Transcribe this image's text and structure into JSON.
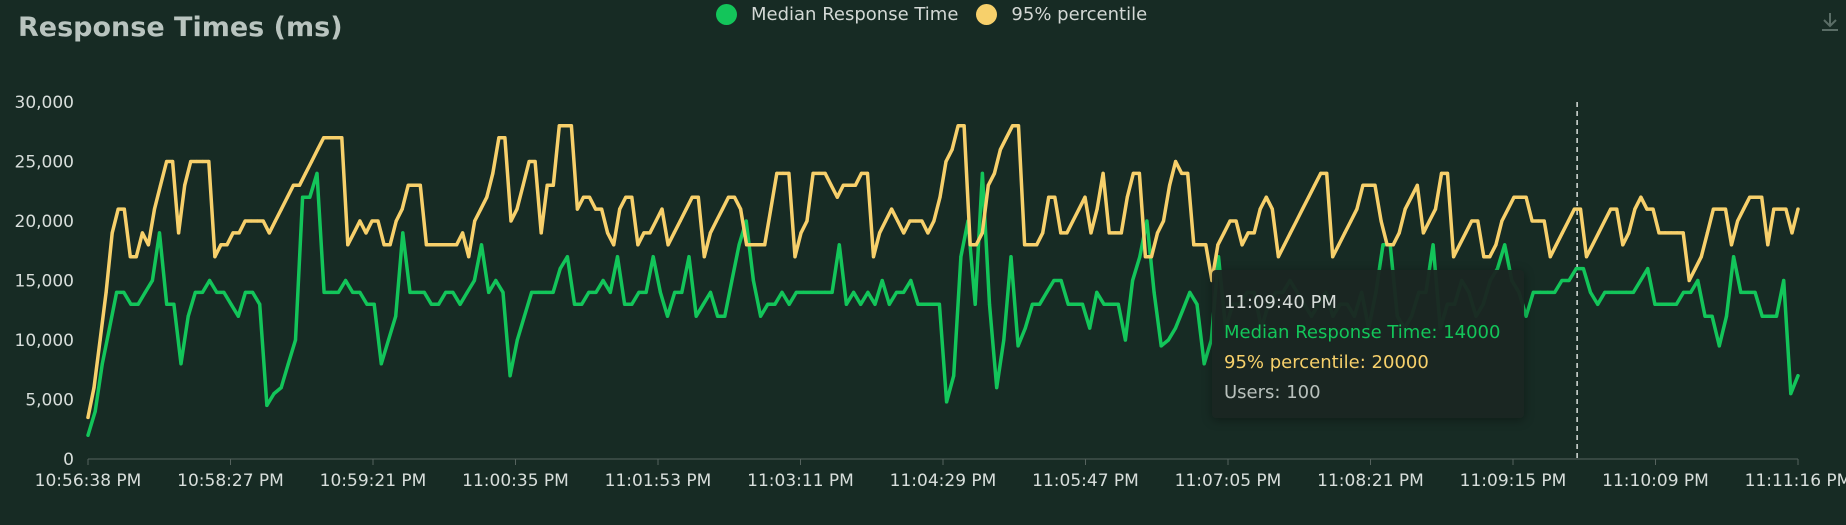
{
  "chart_data": {
    "type": "line",
    "title": "Response Times (ms)",
    "xlabel": "",
    "ylabel": "",
    "ylim": [
      0,
      30000
    ],
    "y_ticks": [
      "0",
      "5,000",
      "10,000",
      "15,000",
      "20,000",
      "25,000",
      "30,000"
    ],
    "x_tick_labels": [
      "10:56:38 PM",
      "10:58:27 PM",
      "10:59:21 PM",
      "11:00:35 PM",
      "11:01:53 PM",
      "11:03:11 PM",
      "11:04:29 PM",
      "11:05:47 PM",
      "11:07:05 PM",
      "11:08:21 PM",
      "11:09:15 PM",
      "11:10:09 PM",
      "11:11:16 PM"
    ],
    "grid": false,
    "legend_position": "top-center",
    "series": [
      {
        "name": "Median Response Time",
        "color": "#13c55a",
        "values": [
          2000,
          4000,
          8000,
          11000,
          14000,
          14000,
          13000,
          13000,
          14000,
          15000,
          19000,
          13000,
          13000,
          8000,
          12000,
          14000,
          14000,
          15000,
          14000,
          14000,
          13000,
          12000,
          14000,
          14000,
          13000,
          4500,
          5500,
          6000,
          8000,
          10000,
          22000,
          22000,
          24000,
          14000,
          14000,
          14000,
          15000,
          14000,
          14000,
          13000,
          13000,
          8000,
          10000,
          12000,
          19000,
          14000,
          14000,
          14000,
          13000,
          13000,
          14000,
          14000,
          13000,
          14000,
          15000,
          18000,
          14000,
          15000,
          14000,
          7000,
          10000,
          12000,
          14000,
          14000,
          14000,
          14000,
          16000,
          17000,
          13000,
          13000,
          14000,
          14000,
          15000,
          14000,
          17000,
          13000,
          13000,
          14000,
          14000,
          17000,
          14000,
          12000,
          14000,
          14000,
          17000,
          12000,
          13000,
          14000,
          12000,
          12000,
          15000,
          18000,
          20000,
          15000,
          12000,
          13000,
          13000,
          14000,
          13000,
          14000,
          14000,
          14000,
          14000,
          14000,
          14000,
          18000,
          13000,
          14000,
          13000,
          14000,
          13000,
          15000,
          13000,
          14000,
          14000,
          15000,
          13000,
          13000,
          13000,
          13000,
          4800,
          7000,
          17000,
          20000,
          13000,
          24000,
          13000,
          6000,
          10000,
          17000,
          9500,
          11000,
          13000,
          13000,
          14000,
          15000,
          15000,
          13000,
          13000,
          13000,
          11000,
          14000,
          13000,
          13000,
          13000,
          10000,
          15000,
          17000,
          20000,
          14000,
          9500,
          10000,
          11000,
          12500,
          14000,
          13000,
          8000,
          10000,
          17000,
          11000,
          13000,
          13000,
          14000,
          14000,
          11000,
          13000,
          14000,
          14000,
          15000,
          14000,
          13000,
          12000,
          13000,
          14000,
          12000,
          13000,
          13000,
          12000,
          14000,
          11000,
          14000,
          18000,
          18000,
          12000,
          11000,
          12000,
          14000,
          14000,
          18000,
          11000,
          13000,
          13000,
          15000,
          14000,
          12000,
          13000,
          15000,
          16000,
          18000,
          15000,
          14000,
          12000,
          14000,
          14000,
          14000,
          14000,
          15000,
          15000,
          16000,
          16000,
          14000,
          13000,
          14000,
          14000,
          14000,
          14000,
          14000,
          15000,
          16000,
          13000,
          13000,
          13000,
          13000,
          14000,
          14000,
          15000,
          12000,
          12000,
          9500,
          12000,
          17000,
          14000,
          14000,
          14000,
          12000,
          12000,
          12000,
          15000,
          5500,
          7000
        ]
      },
      {
        "name": "95% percentile",
        "color": "#f7d06b",
        "values": [
          3500,
          6000,
          10000,
          14000,
          19000,
          21000,
          21000,
          17000,
          17000,
          19000,
          18000,
          21000,
          23000,
          25000,
          25000,
          19000,
          23000,
          25000,
          25000,
          25000,
          25000,
          17000,
          18000,
          18000,
          19000,
          19000,
          20000,
          20000,
          20000,
          20000,
          19000,
          20000,
          21000,
          22000,
          23000,
          23000,
          24000,
          25000,
          26000,
          27000,
          27000,
          27000,
          27000,
          18000,
          19000,
          20000,
          19000,
          20000,
          20000,
          18000,
          18000,
          20000,
          21000,
          23000,
          23000,
          23000,
          18000,
          18000,
          18000,
          18000,
          18000,
          18000,
          19000,
          17000,
          20000,
          21000,
          22000,
          24000,
          27000,
          27000,
          20000,
          21000,
          23000,
          25000,
          25000,
          19000,
          23000,
          23000,
          28000,
          28000,
          28000,
          21000,
          22000,
          22000,
          21000,
          21000,
          19000,
          18000,
          21000,
          22000,
          22000,
          18000,
          19000,
          19000,
          20000,
          21000,
          18000,
          19000,
          20000,
          21000,
          22000,
          22000,
          17000,
          19000,
          20000,
          21000,
          22000,
          22000,
          21000,
          18000,
          18000,
          18000,
          18000,
          21000,
          24000,
          24000,
          24000,
          17000,
          19000,
          20000,
          24000,
          24000,
          24000,
          23000,
          22000,
          23000,
          23000,
          23000,
          24000,
          24000,
          17000,
          19000,
          20000,
          21000,
          20000,
          19000,
          20000,
          20000,
          20000,
          19000,
          20000,
          22000,
          25000,
          26000,
          28000,
          28000,
          18000,
          18000,
          19000,
          23000,
          24000,
          26000,
          27000,
          28000,
          28000,
          18000,
          18000,
          18000,
          19000,
          22000,
          22000,
          19000,
          19000,
          20000,
          21000,
          22000,
          19000,
          21000,
          24000,
          19000,
          19000,
          19000,
          22000,
          24000,
          24000,
          17000,
          17000,
          19000,
          20000,
          23000,
          25000,
          24000,
          24000,
          18000,
          18000,
          18000,
          15000,
          18000,
          19000,
          20000,
          20000,
          18000,
          19000,
          19000,
          21000,
          22000,
          21000,
          17000,
          18000,
          19000,
          20000,
          21000,
          22000,
          23000,
          24000,
          24000,
          17000,
          18000,
          19000,
          20000,
          21000,
          23000,
          23000,
          23000,
          20000,
          18000,
          18000,
          19000,
          21000,
          22000,
          23000,
          19000,
          20000,
          21000,
          24000,
          24000,
          17000,
          18000,
          19000,
          20000,
          20000,
          17000,
          17000,
          18000,
          20000,
          21000,
          22000,
          22000,
          22000,
          20000,
          20000,
          20000,
          17000,
          18000,
          19000,
          20000,
          21000,
          21000,
          17000,
          18000,
          19000,
          20000,
          21000,
          21000,
          18000,
          19000,
          21000,
          22000,
          21000,
          21000,
          19000,
          19000,
          19000,
          19000,
          19000,
          15000,
          16000,
          17000,
          19000,
          21000,
          21000,
          21000,
          18000,
          20000,
          21000,
          22000,
          22000,
          22000,
          18000,
          21000,
          21000,
          21000,
          19000,
          21000
        ]
      }
    ],
    "cursor_label": "11:09:40 PM"
  },
  "tooltip": {
    "time": "11:09:40 PM",
    "median_text": "Median Response Time: 14000",
    "p95_text": "95% percentile: 20000",
    "users_text": "Users: 100"
  },
  "icons": {
    "download": "download-icon"
  }
}
